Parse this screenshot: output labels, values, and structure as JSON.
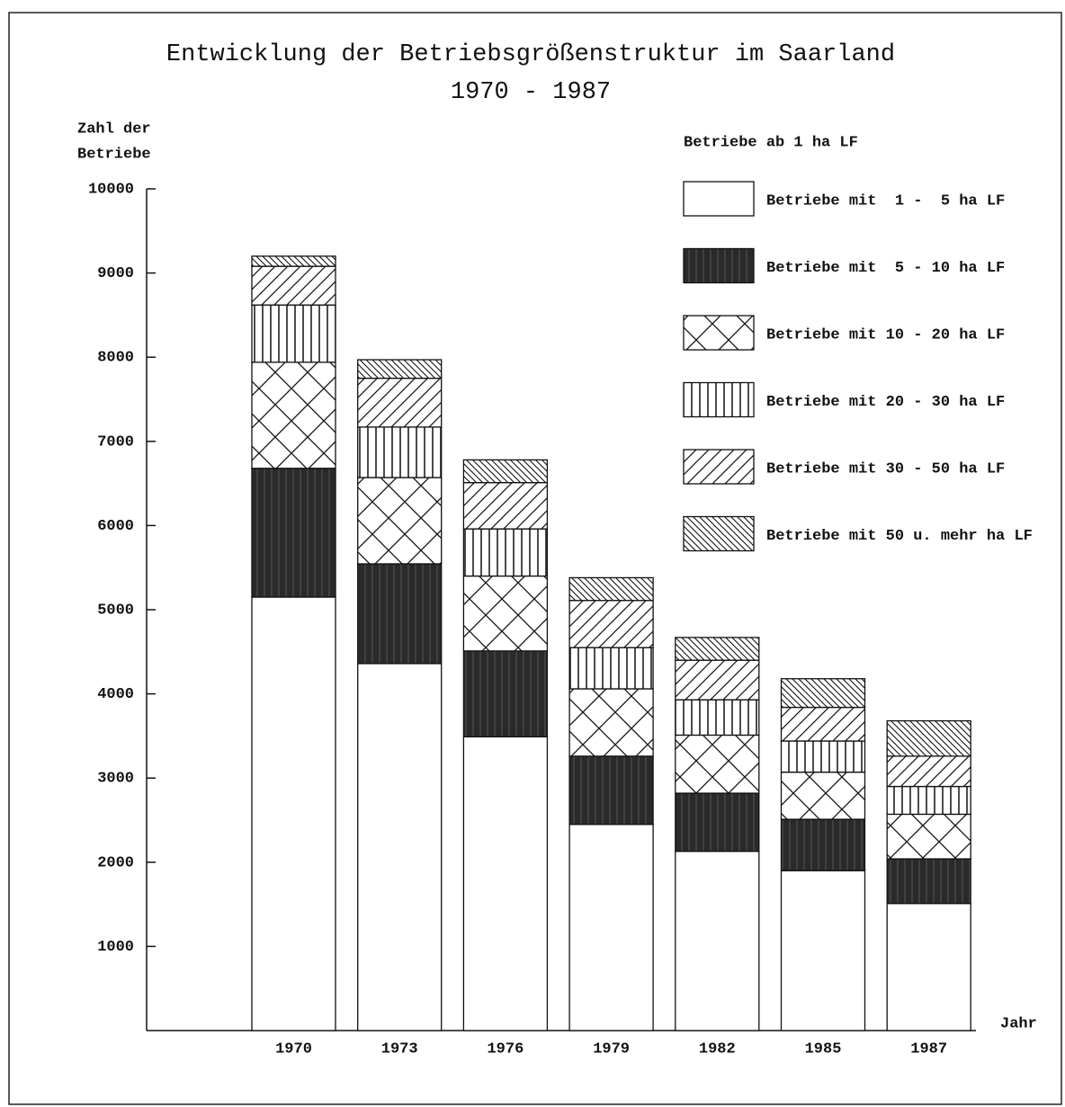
{
  "chart_data": {
    "type": "stacked_bar",
    "title": "Entwicklung der Betriebsgrößenstruktur im Saarland",
    "subtitle": "1970 - 1987",
    "y_label": [
      "Zahl der",
      "Betriebe"
    ],
    "x_label": "Jahr",
    "legend_title": "Betriebe ab 1 ha LF",
    "categories": [
      "1970",
      "1973",
      "1976",
      "1979",
      "1982",
      "1985",
      "1987"
    ],
    "ylim": [
      0,
      10000
    ],
    "yticks": [
      1000,
      2000,
      3000,
      4000,
      5000,
      6000,
      7000,
      8000,
      9000,
      10000
    ],
    "series": [
      {
        "name": "Betriebe mit  1 -  5 ha LF",
        "pattern": "white",
        "values": [
          5150,
          4360,
          3490,
          2450,
          2130,
          1900,
          1510
        ]
      },
      {
        "name": "Betriebe mit  5 - 10 ha LF",
        "pattern": "solid",
        "values": [
          1530,
          1185,
          1020,
          810,
          690,
          610,
          530
        ]
      },
      {
        "name": "Betriebe mit 10 - 20 ha LF",
        "pattern": "crosshatch",
        "values": [
          1260,
          1025,
          890,
          800,
          690,
          560,
          530
        ]
      },
      {
        "name": "Betriebe mit 20 - 30 ha LF",
        "pattern": "vertical",
        "values": [
          680,
          600,
          560,
          490,
          420,
          370,
          330
        ]
      },
      {
        "name": "Betriebe mit 30 - 50 ha LF",
        "pattern": "diagonal-up",
        "values": [
          460,
          580,
          550,
          560,
          470,
          400,
          360
        ]
      },
      {
        "name": "Betriebe mit 50 u. mehr ha LF",
        "pattern": "diagonal-down",
        "values": [
          120,
          220,
          270,
          270,
          270,
          340,
          420
        ]
      }
    ]
  }
}
